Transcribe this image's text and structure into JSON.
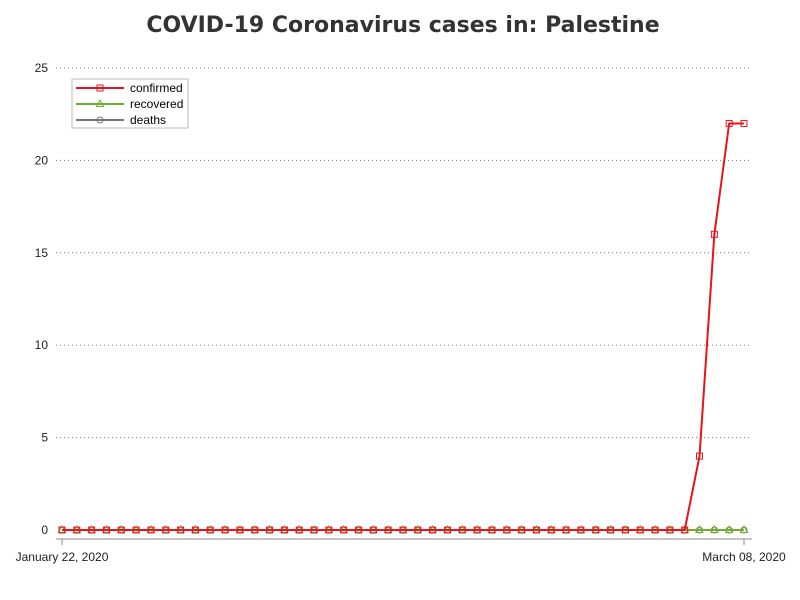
{
  "chart_data": {
    "type": "line",
    "title": "COVID-19 Coronavirus cases in: Palestine",
    "xlabel": "",
    "ylabel": "",
    "x": [
      "2020-01-22",
      "2020-01-23",
      "2020-01-24",
      "2020-01-25",
      "2020-01-26",
      "2020-01-27",
      "2020-01-28",
      "2020-01-29",
      "2020-01-30",
      "2020-01-31",
      "2020-02-01",
      "2020-02-02",
      "2020-02-03",
      "2020-02-04",
      "2020-02-05",
      "2020-02-06",
      "2020-02-07",
      "2020-02-08",
      "2020-02-09",
      "2020-02-10",
      "2020-02-11",
      "2020-02-12",
      "2020-02-13",
      "2020-02-14",
      "2020-02-15",
      "2020-02-16",
      "2020-02-17",
      "2020-02-18",
      "2020-02-19",
      "2020-02-20",
      "2020-02-21",
      "2020-02-22",
      "2020-02-23",
      "2020-02-24",
      "2020-02-25",
      "2020-02-26",
      "2020-02-27",
      "2020-02-28",
      "2020-02-29",
      "2020-03-01",
      "2020-03-02",
      "2020-03-03",
      "2020-03-04",
      "2020-03-05",
      "2020-03-06",
      "2020-03-07",
      "2020-03-08"
    ],
    "x_tick_labels": [
      "January 22, 2020",
      "March 08, 2020"
    ],
    "ylim": [
      0,
      25
    ],
    "y_ticks": [
      0,
      5,
      10,
      15,
      20,
      25
    ],
    "grid": true,
    "legend_position": "top-left",
    "series": [
      {
        "name": "confirmed",
        "color": "#e8141c",
        "marker": "square",
        "values": [
          0,
          0,
          0,
          0,
          0,
          0,
          0,
          0,
          0,
          0,
          0,
          0,
          0,
          0,
          0,
          0,
          0,
          0,
          0,
          0,
          0,
          0,
          0,
          0,
          0,
          0,
          0,
          0,
          0,
          0,
          0,
          0,
          0,
          0,
          0,
          0,
          0,
          0,
          0,
          0,
          0,
          0,
          0,
          4,
          16,
          22,
          22
        ]
      },
      {
        "name": "recovered",
        "color": "#6fae2a",
        "marker": "triangle",
        "values": [
          0,
          0,
          0,
          0,
          0,
          0,
          0,
          0,
          0,
          0,
          0,
          0,
          0,
          0,
          0,
          0,
          0,
          0,
          0,
          0,
          0,
          0,
          0,
          0,
          0,
          0,
          0,
          0,
          0,
          0,
          0,
          0,
          0,
          0,
          0,
          0,
          0,
          0,
          0,
          0,
          0,
          0,
          0,
          0,
          0,
          0,
          0
        ]
      },
      {
        "name": "deaths",
        "color": "#777777",
        "marker": "circle",
        "values": [
          0,
          0,
          0,
          0,
          0,
          0,
          0,
          0,
          0,
          0,
          0,
          0,
          0,
          0,
          0,
          0,
          0,
          0,
          0,
          0,
          0,
          0,
          0,
          0,
          0,
          0,
          0,
          0,
          0,
          0,
          0,
          0,
          0,
          0,
          0,
          0,
          0,
          0,
          0,
          0,
          0,
          0,
          0,
          0,
          0,
          0,
          0
        ]
      }
    ]
  }
}
